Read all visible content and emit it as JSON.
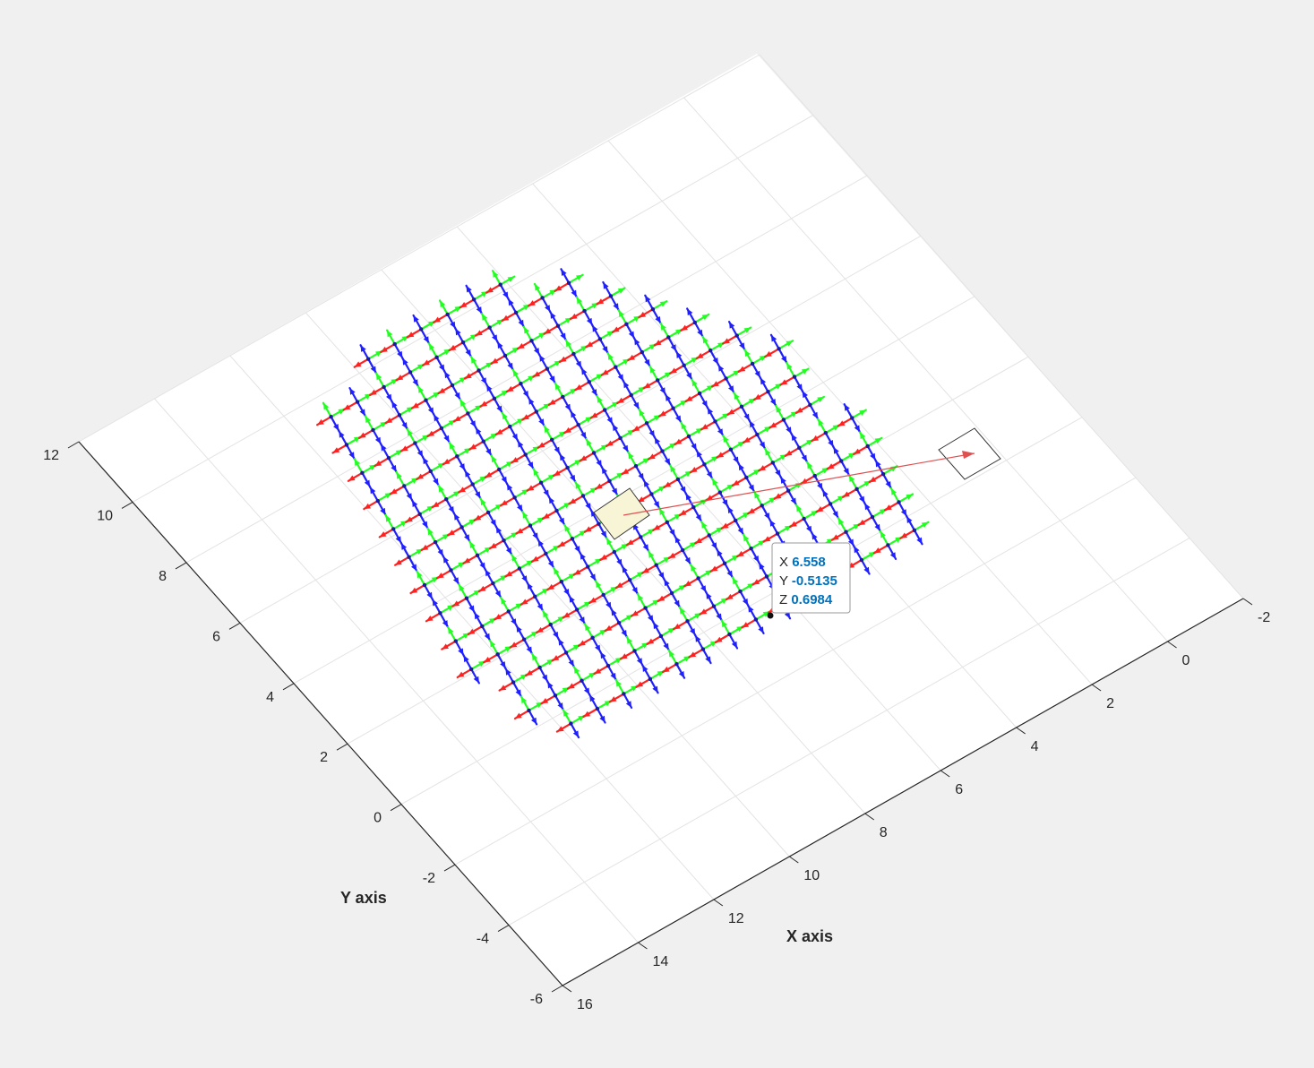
{
  "chart_data": {
    "type": "quiver3",
    "xlabel": "X axis",
    "ylabel": "Y axis",
    "xlim": [
      -2,
      16
    ],
    "ylim": [
      -6,
      12
    ],
    "x_ticks": [
      "-2",
      "0",
      "2",
      "4",
      "6",
      "8",
      "10",
      "12",
      "14",
      "16"
    ],
    "y_ticks": [
      "-6",
      "-4",
      "-2",
      "0",
      "2",
      "4",
      "6",
      "8",
      "10",
      "12"
    ],
    "grid": true,
    "view": "3-D oblique",
    "arrow_colors": [
      "#ff2020",
      "#20ff20",
      "#2020ff"
    ],
    "grid_pose_rows": 14,
    "grid_pose_cols": 15,
    "datatip": {
      "labels": [
        "X",
        "Y",
        "Z"
      ],
      "values": [
        "6.558",
        "-0.5135",
        "0.6984"
      ]
    }
  },
  "colors": {
    "background": "#f0f0f0",
    "axes": "#ffffff",
    "grid": "#e0e0e0",
    "tip_value": "#0072bd"
  }
}
